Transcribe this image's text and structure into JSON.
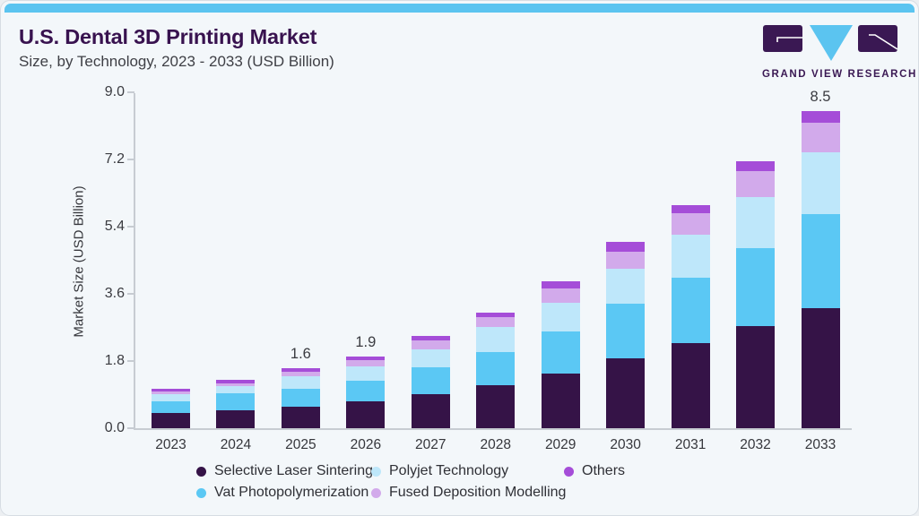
{
  "header": {
    "title": "U.S. Dental 3D Printing Market",
    "subtitle": "Size, by Technology, 2023 - 2033 (USD Billion)",
    "logo_text": "GRAND VIEW RESEARCH"
  },
  "chart_data": {
    "type": "bar",
    "stacked": true,
    "title": "U.S. Dental 3D Printing Market Size, by Technology, 2023 - 2033 (USD Billion)",
    "xlabel": "",
    "ylabel": "Market Size (USD Billion)",
    "categories": [
      "2023",
      "2024",
      "2025",
      "2026",
      "2027",
      "2028",
      "2029",
      "2030",
      "2031",
      "2032",
      "2033"
    ],
    "series": [
      {
        "name": "Selective Laser Sintering",
        "color": "#351347",
        "values": [
          0.4,
          0.49,
          0.58,
          0.72,
          0.92,
          1.16,
          1.46,
          1.86,
          2.27,
          2.73,
          3.22
        ]
      },
      {
        "name": "Vat Photopolymerization",
        "color": "#5BC8F4",
        "values": [
          0.33,
          0.45,
          0.47,
          0.56,
          0.7,
          0.88,
          1.14,
          1.47,
          1.76,
          2.1,
          2.52
        ]
      },
      {
        "name": "Polyjet Technology",
        "color": "#BEE7FA",
        "values": [
          0.18,
          0.19,
          0.34,
          0.38,
          0.5,
          0.67,
          0.76,
          0.93,
          1.16,
          1.37,
          1.64
        ]
      },
      {
        "name": "Fused Deposition Modelling",
        "color": "#D2AAEB",
        "values": [
          0.07,
          0.08,
          0.11,
          0.16,
          0.24,
          0.27,
          0.38,
          0.46,
          0.56,
          0.68,
          0.81
        ]
      },
      {
        "name": "Others",
        "color": "#A54DD8",
        "values": [
          0.07,
          0.08,
          0.1,
          0.1,
          0.11,
          0.12,
          0.19,
          0.26,
          0.23,
          0.27,
          0.31
        ]
      }
    ],
    "bar_totals": [
      1.05,
      1.29,
      1.6,
      1.92,
      2.47,
      3.1,
      3.93,
      4.98,
      5.98,
      7.15,
      8.5
    ],
    "total_labels": {
      "2025": "1.6",
      "2026": "1.9",
      "2033": "8.5"
    },
    "ytick_labels": [
      "0.0",
      "1.8",
      "3.6",
      "5.4",
      "7.2",
      "9.0"
    ],
    "ylim": [
      0,
      9.0
    ],
    "grid": false,
    "legend_position": "bottom",
    "legend_rows": [
      [
        "Selective Laser Sintering",
        "Polyjet Technology",
        "Others"
      ],
      [
        "Vat Photopolymerization",
        "Fused Deposition Modelling"
      ]
    ]
  },
  "colors": {
    "accent_bar": "#5BC4F0",
    "title": "#38124F",
    "logo_purple": "#3A1853",
    "logo_cyan": "#5BC4F0",
    "axis": "#C7CCD2"
  }
}
